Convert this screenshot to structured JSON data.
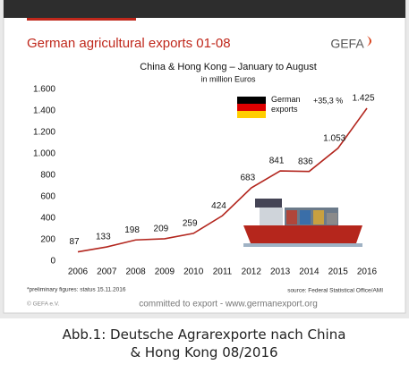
{
  "chart_data": {
    "type": "line",
    "title": "German agricultural exports 01-08",
    "logo": "GEFA",
    "subtitle": "China & Hong Kong – January to August",
    "unit_label": "in million Euros",
    "categories": [
      "2006",
      "2007",
      "2008",
      "2009",
      "2010",
      "2011",
      "2012",
      "2013",
      "2014",
      "2015",
      "2016"
    ],
    "series": [
      {
        "name": "German exports",
        "color": "#b3261e",
        "values": [
          87,
          133,
          198,
          209,
          259,
          424,
          683,
          841,
          836,
          1053,
          1425
        ],
        "value_labels": [
          "87",
          "133",
          "198",
          "209",
          "259",
          "424",
          "683",
          "841",
          "836",
          "1.053",
          "1.425"
        ]
      }
    ],
    "annotation": "+35,3 %",
    "ylim": [
      0,
      1600
    ],
    "yticks": [
      0,
      200,
      400,
      600,
      800,
      {
        "value": 1000,
        "label": "1.000"
      },
      {
        "value": 1200,
        "label": "1.200"
      },
      {
        "value": 1400,
        "label": "1.400"
      },
      {
        "value": 1600,
        "label": "1.600"
      }
    ],
    "footnote": "*preliminary figures: status 15.11.2016",
    "source": "source: Federal Statistical Office/AMI",
    "copyright": "© GEFA e.V.",
    "slogan": "committed to export - www.germanexport.org"
  },
  "caption": "Abb.1: Deutsche Agrarexporte nach China & Hong Kong 08/2016"
}
